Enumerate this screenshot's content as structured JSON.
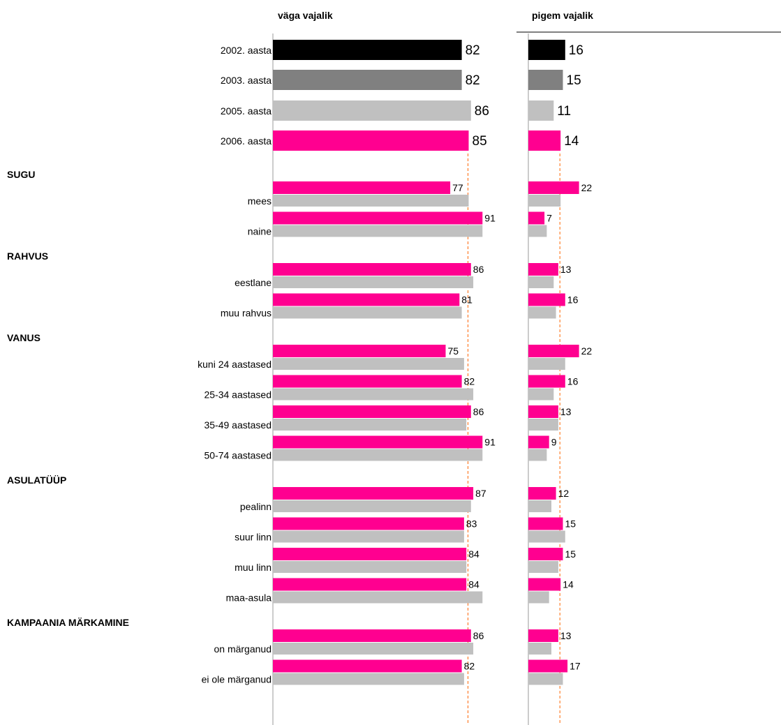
{
  "colors": {
    "y2002": "#000000",
    "y2003": "#808080",
    "y2005": "#c0c0c0",
    "y2006": "#ff0090",
    "comparison": "#c0c0c0",
    "reference_line": "#ff6600",
    "axis": "#999999"
  },
  "chart_data": {
    "type": "bar",
    "orientation": "horizontal",
    "columns": [
      "väga vajalik",
      "pigem vajalik"
    ],
    "legend": "none",
    "grid": false,
    "reference_line": {
      "väga vajalik": 85,
      "pigem vajalik": 14
    },
    "headline_rows": [
      {
        "label": "2002. aasta",
        "color": "#000000",
        "values": [
          82,
          16
        ]
      },
      {
        "label": "2003. aasta",
        "color": "#808080",
        "values": [
          82,
          15
        ]
      },
      {
        "label": "2005. aasta",
        "color": "#c0c0c0",
        "values": [
          86,
          11
        ]
      },
      {
        "label": "2006. aasta",
        "color": "#ff0090",
        "values": [
          85,
          14
        ]
      }
    ],
    "groups": [
      {
        "title": "SUGU",
        "rows": [
          {
            "label": "mees",
            "current": [
              77,
              22
            ],
            "comparison": [
              85,
              14
            ]
          },
          {
            "label": "naine",
            "current": [
              91,
              7
            ],
            "comparison": [
              91,
              8
            ]
          }
        ]
      },
      {
        "title": "RAHVUS",
        "rows": [
          {
            "label": "eestlane",
            "current": [
              86,
              13
            ],
            "comparison": [
              87,
              11
            ]
          },
          {
            "label": "muu rahvus",
            "current": [
              81,
              16
            ],
            "comparison": [
              82,
              12
            ]
          }
        ]
      },
      {
        "title": "VANUS",
        "rows": [
          {
            "label": "kuni 24 aastased",
            "current": [
              75,
              22
            ],
            "comparison": [
              83,
              16
            ]
          },
          {
            "label": "25-34 aastased",
            "current": [
              82,
              16
            ],
            "comparison": [
              87,
              11
            ]
          },
          {
            "label": "35-49 aastased",
            "current": [
              86,
              13
            ],
            "comparison": [
              84,
              13
            ]
          },
          {
            "label": "50-74 aastased",
            "current": [
              91,
              9
            ],
            "comparison": [
              91,
              8
            ]
          }
        ]
      },
      {
        "title": "ASULATÜÜP",
        "rows": [
          {
            "label": "pealinn",
            "current": [
              87,
              12
            ],
            "comparison": [
              86,
              10
            ]
          },
          {
            "label": "suur linn",
            "current": [
              83,
              15
            ],
            "comparison": [
              83,
              16
            ]
          },
          {
            "label": "muu linn",
            "current": [
              84,
              15
            ],
            "comparison": [
              84,
              13
            ]
          },
          {
            "label": "maa-asula",
            "current": [
              84,
              14
            ],
            "comparison": [
              91,
              9
            ]
          }
        ]
      },
      {
        "title": "KAMPAANIA MÄRKAMINE",
        "rows": [
          {
            "label": "on märganud",
            "current": [
              86,
              13
            ],
            "comparison": [
              87,
              10
            ]
          },
          {
            "label": "ei ole märganud",
            "current": [
              82,
              17
            ],
            "comparison": [
              83,
              15
            ]
          }
        ]
      }
    ]
  }
}
